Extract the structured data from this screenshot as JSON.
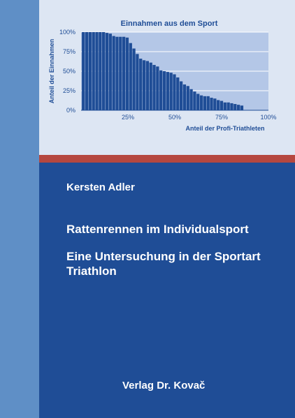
{
  "colors": {
    "cover_blue": "#1f4d96",
    "side_strip": "#5f8fc6",
    "chart_panel": "#dde6f3",
    "plot_area": "#b4c7e7",
    "bars": "#1f4d96",
    "accent_red": "#b5473f"
  },
  "cover": {
    "author": "Kersten Adler",
    "title": "Rattenrennen im Individualsport",
    "subtitle": "Eine Untersuchung in der Sportart Triathlon",
    "publisher": "Verlag Dr. Kovač"
  },
  "chart_data": {
    "type": "bar",
    "title": "Einnahmen aus dem Sport",
    "xlabel": "Anteil der Profi-Triathleten",
    "ylabel": "Anteil der Einnahmen",
    "xlim": [
      0,
      100
    ],
    "ylim": [
      0,
      100
    ],
    "x_ticks": [
      "25%",
      "50%",
      "75%",
      "100%"
    ],
    "y_ticks": [
      "0%",
      "25%",
      "50%",
      "75%",
      "100%"
    ],
    "grid": true,
    "bar_width": 1.6,
    "x": [
      1.2,
      3.0,
      4.8,
      6.6,
      8.4,
      10.2,
      12.0,
      13.8,
      15.6,
      17.4,
      19.2,
      21.0,
      22.8,
      24.6,
      26.4,
      28.2,
      30.0,
      31.8,
      33.6,
      35.4,
      37.2,
      39.0,
      40.8,
      42.6,
      44.4,
      46.2,
      48.0,
      49.8,
      51.6,
      53.4,
      55.2,
      57.0,
      58.8,
      60.6,
      62.4,
      64.2,
      66.0,
      67.8,
      69.6,
      71.4,
      73.2,
      75.0,
      76.8,
      78.6,
      80.4,
      82.2,
      84.0,
      85.8
    ],
    "values": [
      100,
      100,
      100,
      100,
      100,
      100,
      100,
      99,
      98,
      95,
      94,
      94,
      94,
      93,
      86,
      79,
      72,
      66,
      64,
      63,
      61,
      58,
      56,
      51,
      50,
      49,
      48,
      46,
      42,
      37,
      33,
      31,
      27,
      24,
      21,
      19,
      18,
      18,
      16,
      15,
      13,
      12,
      10,
      10,
      9,
      8,
      7,
      6
    ]
  }
}
